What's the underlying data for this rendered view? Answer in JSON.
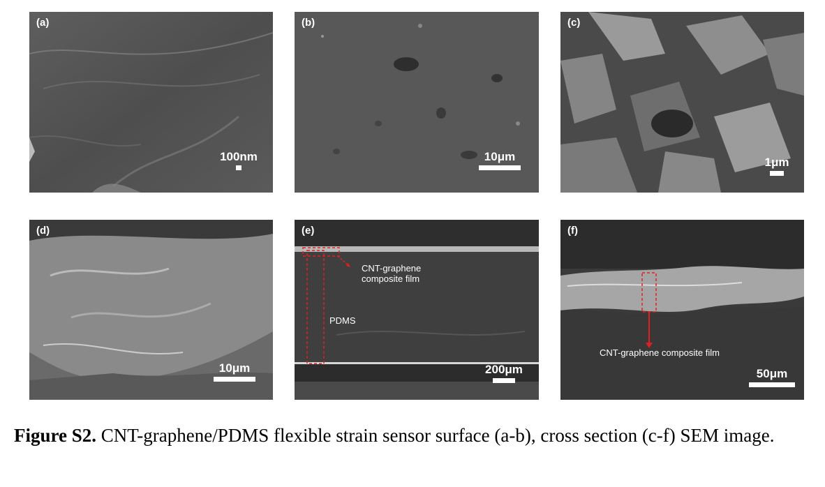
{
  "panels": [
    {
      "label": "(a)",
      "scale": "100nm"
    },
    {
      "label": "(b)",
      "scale": "10μm"
    },
    {
      "label": "(c)",
      "scale": "1μm"
    },
    {
      "label": "(d)",
      "scale": "10μm"
    },
    {
      "label": "(e)",
      "scale": "200μm",
      "annotations": [
        "CNT-graphene",
        "composite film",
        "PDMS"
      ]
    },
    {
      "label": "(f)",
      "scale": "50μm",
      "annotations": [
        "CNT-graphene composite film"
      ]
    }
  ],
  "caption": {
    "figure_label": "Figure S2.",
    "text": " CNT-graphene/PDMS flexible strain sensor surface (a-b), cross section (c-f) SEM image."
  }
}
